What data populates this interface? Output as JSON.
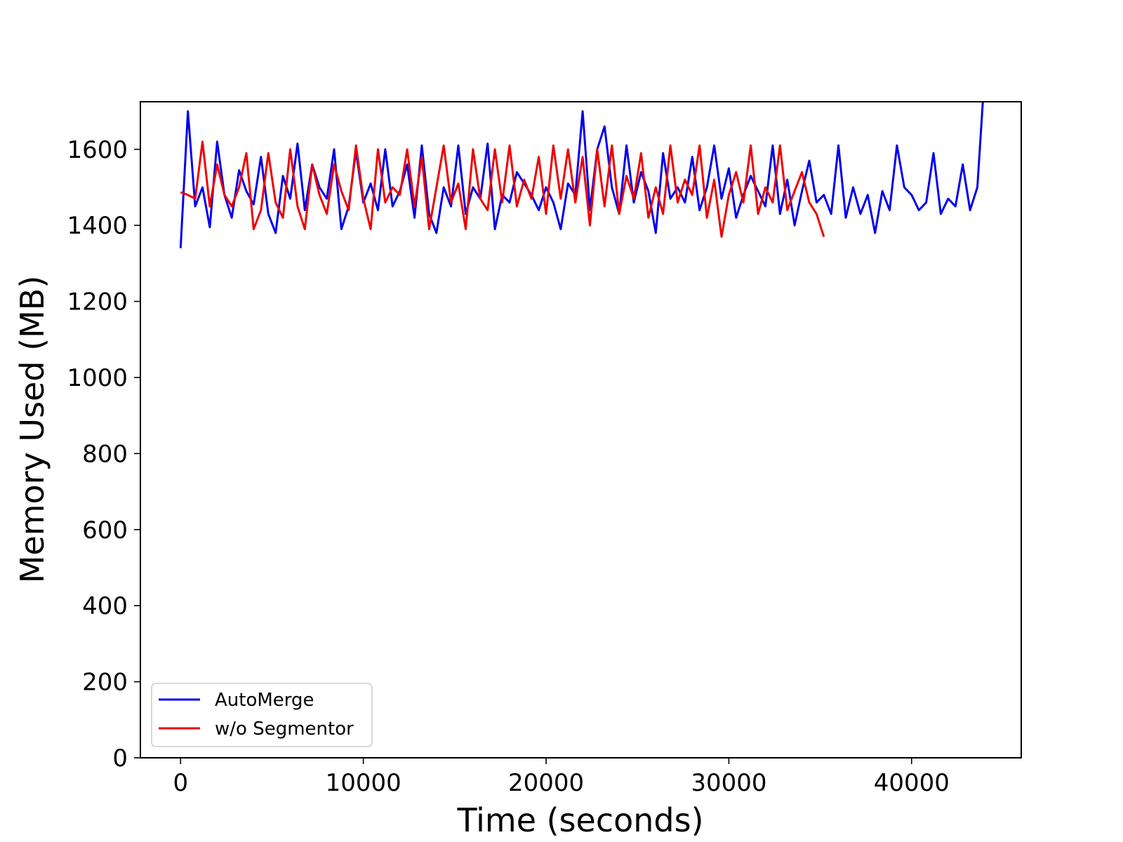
{
  "chart_data": {
    "type": "line",
    "title": "",
    "xlabel": "Time (seconds)",
    "ylabel": "Memory Used (MB)",
    "xlim": [
      -2200,
      46000
    ],
    "ylim": [
      0,
      1725
    ],
    "xticks": [
      0,
      10000,
      20000,
      30000,
      40000
    ],
    "yticks": [
      0,
      200,
      400,
      600,
      800,
      1000,
      1200,
      1400,
      1600
    ],
    "grid": false,
    "legend_position": "lower-left",
    "series": [
      {
        "name": "AutoMerge",
        "color": "#0000ee",
        "x": [
          0,
          400,
          800,
          1200,
          1600,
          2000,
          2400,
          2800,
          3200,
          3600,
          4000,
          4400,
          4800,
          5200,
          5600,
          6000,
          6400,
          6800,
          7200,
          7600,
          8000,
          8400,
          8800,
          9200,
          9600,
          10000,
          10400,
          10800,
          11200,
          11600,
          12000,
          12400,
          12800,
          13200,
          13600,
          14000,
          14400,
          14800,
          15200,
          15600,
          16000,
          16400,
          16800,
          17200,
          17600,
          18000,
          18400,
          18800,
          19200,
          19600,
          20000,
          20400,
          20800,
          21200,
          21600,
          22000,
          22400,
          22800,
          23200,
          23600,
          24000,
          24400,
          24800,
          25200,
          25600,
          26000,
          26400,
          26800,
          27200,
          27600,
          28000,
          28400,
          28800,
          29200,
          29600,
          30000,
          30400,
          30800,
          31200,
          31600,
          32000,
          32400,
          32800,
          33200,
          33600,
          34000,
          34400,
          34800,
          35200,
          35600,
          36000,
          36400,
          36800,
          37200,
          37600,
          38000,
          38400,
          38800,
          39200,
          39600,
          40000,
          40400,
          40800,
          41200,
          41600,
          42000,
          42400,
          42800,
          43200,
          43600,
          43900
        ],
        "y": [
          1340,
          1700,
          1450,
          1500,
          1395,
          1620,
          1480,
          1420,
          1545,
          1490,
          1455,
          1580,
          1430,
          1380,
          1530,
          1470,
          1615,
          1440,
          1560,
          1500,
          1470,
          1600,
          1390,
          1450,
          1595,
          1460,
          1510,
          1440,
          1600,
          1450,
          1490,
          1560,
          1420,
          1610,
          1430,
          1380,
          1500,
          1450,
          1610,
          1430,
          1500,
          1470,
          1615,
          1390,
          1480,
          1460,
          1540,
          1510,
          1480,
          1440,
          1500,
          1460,
          1390,
          1510,
          1480,
          1700,
          1440,
          1600,
          1660,
          1500,
          1430,
          1610,
          1460,
          1540,
          1490,
          1380,
          1590,
          1470,
          1500,
          1460,
          1580,
          1440,
          1500,
          1610,
          1470,
          1550,
          1420,
          1480,
          1530,
          1490,
          1450,
          1610,
          1430,
          1520,
          1400,
          1490,
          1570,
          1460,
          1480,
          1430,
          1610,
          1420,
          1500,
          1430,
          1480,
          1380,
          1490,
          1440,
          1610,
          1500,
          1480,
          1440,
          1460,
          1590,
          1430,
          1470,
          1450,
          1560,
          1440,
          1500,
          1725
        ]
      },
      {
        "name": "w/o Segmentor",
        "color": "#ee0000",
        "x": [
          0,
          400,
          800,
          1200,
          1600,
          2000,
          2400,
          2800,
          3200,
          3600,
          4000,
          4400,
          4800,
          5200,
          5600,
          6000,
          6400,
          6800,
          7200,
          7600,
          8000,
          8400,
          8800,
          9200,
          9600,
          10000,
          10400,
          10800,
          11200,
          11600,
          12000,
          12400,
          12800,
          13200,
          13600,
          14000,
          14400,
          14800,
          15200,
          15600,
          16000,
          16400,
          16800,
          17200,
          17600,
          18000,
          18400,
          18800,
          19200,
          19600,
          20000,
          20400,
          20800,
          21200,
          21600,
          22000,
          22400,
          22800,
          23200,
          23600,
          24000,
          24400,
          24800,
          25200,
          25600,
          26000,
          26400,
          26800,
          27200,
          27600,
          28000,
          28400,
          28800,
          29200,
          29600,
          30000,
          30400,
          30800,
          31200,
          31600,
          32000,
          32400,
          32800,
          33200,
          33600,
          34000,
          34400,
          34800,
          35200
        ],
        "y": [
          1487,
          1480,
          1470,
          1620,
          1450,
          1560,
          1480,
          1450,
          1500,
          1590,
          1390,
          1440,
          1590,
          1460,
          1420,
          1600,
          1450,
          1390,
          1560,
          1480,
          1430,
          1560,
          1490,
          1440,
          1610,
          1470,
          1390,
          1600,
          1460,
          1500,
          1480,
          1600,
          1450,
          1580,
          1390,
          1500,
          1610,
          1460,
          1510,
          1390,
          1600,
          1470,
          1440,
          1600,
          1460,
          1610,
          1450,
          1520,
          1470,
          1580,
          1430,
          1610,
          1470,
          1600,
          1460,
          1580,
          1400,
          1600,
          1450,
          1610,
          1430,
          1530,
          1470,
          1590,
          1420,
          1500,
          1430,
          1610,
          1460,
          1520,
          1480,
          1610,
          1420,
          1520,
          1370,
          1480,
          1540,
          1460,
          1610,
          1430,
          1500,
          1460,
          1610,
          1440,
          1490,
          1540,
          1460,
          1430,
          1370
        ]
      }
    ]
  }
}
